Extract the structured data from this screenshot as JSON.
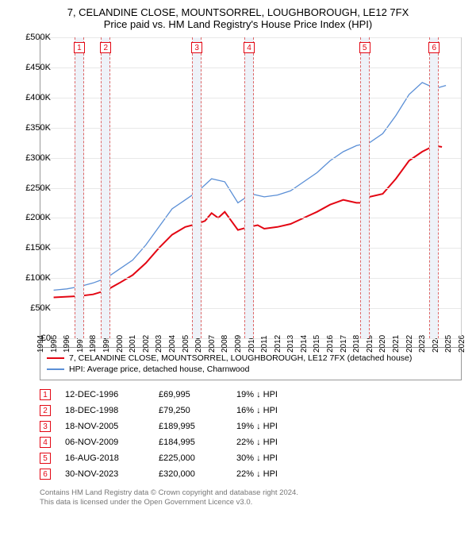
{
  "title": {
    "line1": "7, CELANDINE CLOSE, MOUNTSORREL, LOUGHBOROUGH, LE12 7FX",
    "line2": "Price paid vs. HM Land Registry's House Price Index (HPI)"
  },
  "chart": {
    "type": "line",
    "background_color": "#ffffff",
    "grid_color": "#e8e8e8",
    "axis_color": "#999999",
    "x": {
      "min": 1994,
      "max": 2026,
      "ticks": [
        1994,
        1995,
        1996,
        1997,
        1998,
        1999,
        2000,
        2001,
        2002,
        2003,
        2004,
        2005,
        2006,
        2007,
        2008,
        2009,
        2010,
        2011,
        2012,
        2013,
        2014,
        2015,
        2016,
        2017,
        2018,
        2019,
        2020,
        2021,
        2022,
        2023,
        2024,
        2025,
        2026
      ]
    },
    "y": {
      "min": 0,
      "max": 500000,
      "step": 50000,
      "prefix": "£",
      "suffix": "K",
      "ticks": [
        0,
        50000,
        100000,
        150000,
        200000,
        250000,
        300000,
        350000,
        400000,
        450000,
        500000
      ]
    },
    "series": [
      {
        "name": "7, CELANDINE CLOSE, MOUNTSORREL, LOUGHBOROUGH, LE12 7FX (detached house)",
        "color": "#e30613",
        "width": 2,
        "points": [
          [
            1995.0,
            68000
          ],
          [
            1996.9,
            69995
          ],
          [
            1998.0,
            73000
          ],
          [
            1998.96,
            79250
          ],
          [
            2000.0,
            92000
          ],
          [
            2001.0,
            105000
          ],
          [
            2002.0,
            125000
          ],
          [
            2003.0,
            150000
          ],
          [
            2004.0,
            172000
          ],
          [
            2005.0,
            185000
          ],
          [
            2005.88,
            189995
          ],
          [
            2006.5,
            195000
          ],
          [
            2007.0,
            208000
          ],
          [
            2007.5,
            200000
          ],
          [
            2008.0,
            210000
          ],
          [
            2008.5,
            195000
          ],
          [
            2009.0,
            180000
          ],
          [
            2009.85,
            184995
          ],
          [
            2010.5,
            188000
          ],
          [
            2011.0,
            182000
          ],
          [
            2012.0,
            185000
          ],
          [
            2013.0,
            190000
          ],
          [
            2014.0,
            200000
          ],
          [
            2015.0,
            210000
          ],
          [
            2016.0,
            222000
          ],
          [
            2017.0,
            230000
          ],
          [
            2018.0,
            225000
          ],
          [
            2018.63,
            225000
          ],
          [
            2019.0,
            235000
          ],
          [
            2020.0,
            240000
          ],
          [
            2021.0,
            265000
          ],
          [
            2022.0,
            295000
          ],
          [
            2023.0,
            310000
          ],
          [
            2023.91,
            320000
          ],
          [
            2024.5,
            318000
          ]
        ]
      },
      {
        "name": "HPI: Average price, detached house, Charnwood",
        "color": "#5b8fd6",
        "width": 1.3,
        "points": [
          [
            1995.0,
            80000
          ],
          [
            1996.0,
            82000
          ],
          [
            1997.0,
            86000
          ],
          [
            1998.0,
            92000
          ],
          [
            1999.0,
            100000
          ],
          [
            2000.0,
            115000
          ],
          [
            2001.0,
            130000
          ],
          [
            2002.0,
            155000
          ],
          [
            2003.0,
            185000
          ],
          [
            2004.0,
            215000
          ],
          [
            2005.0,
            230000
          ],
          [
            2006.0,
            245000
          ],
          [
            2007.0,
            265000
          ],
          [
            2008.0,
            260000
          ],
          [
            2009.0,
            225000
          ],
          [
            2010.0,
            240000
          ],
          [
            2011.0,
            235000
          ],
          [
            2012.0,
            238000
          ],
          [
            2013.0,
            245000
          ],
          [
            2014.0,
            260000
          ],
          [
            2015.0,
            275000
          ],
          [
            2016.0,
            295000
          ],
          [
            2017.0,
            310000
          ],
          [
            2018.0,
            320000
          ],
          [
            2019.0,
            325000
          ],
          [
            2020.0,
            340000
          ],
          [
            2021.0,
            370000
          ],
          [
            2022.0,
            405000
          ],
          [
            2023.0,
            425000
          ],
          [
            2024.0,
            415000
          ],
          [
            2024.8,
            420000
          ]
        ]
      }
    ],
    "markers": {
      "band_fill": "#eef2f8",
      "band_border": "#d66",
      "box_border": "#e30613",
      "box_text": "#e30613",
      "items": [
        {
          "n": "1",
          "x": 1996.95,
          "y": 69995
        },
        {
          "n": "2",
          "x": 1998.96,
          "y": 79250
        },
        {
          "n": "3",
          "x": 2005.88,
          "y": 189995
        },
        {
          "n": "4",
          "x": 2009.85,
          "y": 184995
        },
        {
          "n": "5",
          "x": 2018.63,
          "y": 225000
        },
        {
          "n": "6",
          "x": 2023.91,
          "y": 320000
        }
      ]
    }
  },
  "legend": [
    {
      "color": "#e30613",
      "label": "7, CELANDINE CLOSE, MOUNTSORREL, LOUGHBOROUGH, LE12 7FX (detached house)"
    },
    {
      "color": "#5b8fd6",
      "label": "HPI: Average price, detached house, Charnwood"
    }
  ],
  "events": [
    {
      "n": "1",
      "date": "12-DEC-1996",
      "price": "£69,995",
      "delta": "19% ↓ HPI"
    },
    {
      "n": "2",
      "date": "18-DEC-1998",
      "price": "£79,250",
      "delta": "16% ↓ HPI"
    },
    {
      "n": "3",
      "date": "18-NOV-2005",
      "price": "£189,995",
      "delta": "19% ↓ HPI"
    },
    {
      "n": "4",
      "date": "06-NOV-2009",
      "price": "£184,995",
      "delta": "22% ↓ HPI"
    },
    {
      "n": "5",
      "date": "16-AUG-2018",
      "price": "£225,000",
      "delta": "30% ↓ HPI"
    },
    {
      "n": "6",
      "date": "30-NOV-2023",
      "price": "£320,000",
      "delta": "22% ↓ HPI"
    }
  ],
  "footer": {
    "line1": "Contains HM Land Registry data © Crown copyright and database right 2024.",
    "line2": "This data is licensed under the Open Government Licence v3.0."
  }
}
